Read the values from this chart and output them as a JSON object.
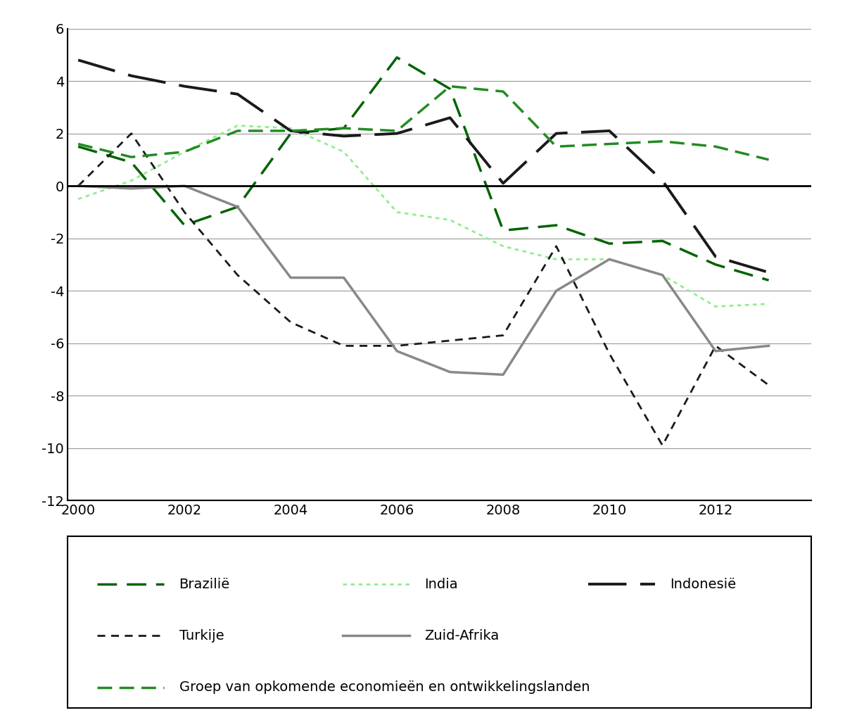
{
  "years": [
    2000,
    2001,
    2002,
    2003,
    2004,
    2005,
    2006,
    2007,
    2008,
    2009,
    2010,
    2011,
    2012,
    2013
  ],
  "Brazilie": [
    1.5,
    0.9,
    -1.5,
    -0.8,
    2.0,
    2.2,
    4.9,
    3.7,
    -1.7,
    -1.5,
    -2.2,
    -2.1,
    -3.0,
    -3.6
  ],
  "India": [
    -0.5,
    0.2,
    1.3,
    2.3,
    2.2,
    1.3,
    -1.0,
    -1.3,
    -2.3,
    -2.8,
    -2.8,
    -3.4,
    -4.6,
    -4.5
  ],
  "Indonesie": [
    4.8,
    4.2,
    3.8,
    3.5,
    2.1,
    1.9,
    2.0,
    2.6,
    0.1,
    2.0,
    2.1,
    0.2,
    -2.7,
    -3.3
  ],
  "Turkije": [
    0.0,
    2.0,
    -1.0,
    -3.4,
    -5.2,
    -6.1,
    -6.1,
    -5.9,
    -5.7,
    -2.3,
    -6.4,
    -9.9,
    -6.1,
    -7.6
  ],
  "ZuidAfrika": [
    0.0,
    -0.1,
    0.0,
    -0.8,
    -3.5,
    -3.5,
    -6.3,
    -7.1,
    -7.2,
    -4.0,
    -2.8,
    -3.4,
    -6.3,
    -6.1
  ],
  "Groep": [
    1.6,
    1.1,
    1.3,
    2.1,
    2.1,
    2.2,
    2.1,
    3.8,
    3.6,
    1.5,
    1.6,
    1.7,
    1.5,
    1.0
  ],
  "ylim": [
    -12,
    6
  ],
  "yticks": [
    -12,
    -10,
    -8,
    -6,
    -4,
    -2,
    0,
    2,
    4,
    6
  ],
  "xticks": [
    2000,
    2002,
    2004,
    2006,
    2008,
    2010,
    2012
  ],
  "legend_labels": {
    "Brazilie": "Brazilië",
    "India": "India",
    "Indonesie": "Indonesië",
    "Turkije": "Turkije",
    "ZuidAfrika": "Zuid-Afrika",
    "Groep": "Groep van opkomende economieën en ontwikkelingslanden"
  },
  "line_specs": {
    "Brazilie": {
      "color": "#006400",
      "lw": 2.5,
      "dashes": [
        8,
        4
      ]
    },
    "India": {
      "color": "#90EE90",
      "lw": 2.0,
      "dashes": [
        2,
        2
      ]
    },
    "Indonesie": {
      "color": "#1a1a1a",
      "lw": 2.8,
      "dashes": [
        14,
        5
      ]
    },
    "Turkije": {
      "color": "#1a1a1a",
      "lw": 2.0,
      "dashes": [
        4,
        3
      ]
    },
    "ZuidAfrika": {
      "color": "#888888",
      "lw": 2.5,
      "dashes": []
    },
    "Groep": {
      "color": "#228B22",
      "lw": 2.5,
      "dashes": [
        6,
        3
      ]
    }
  }
}
